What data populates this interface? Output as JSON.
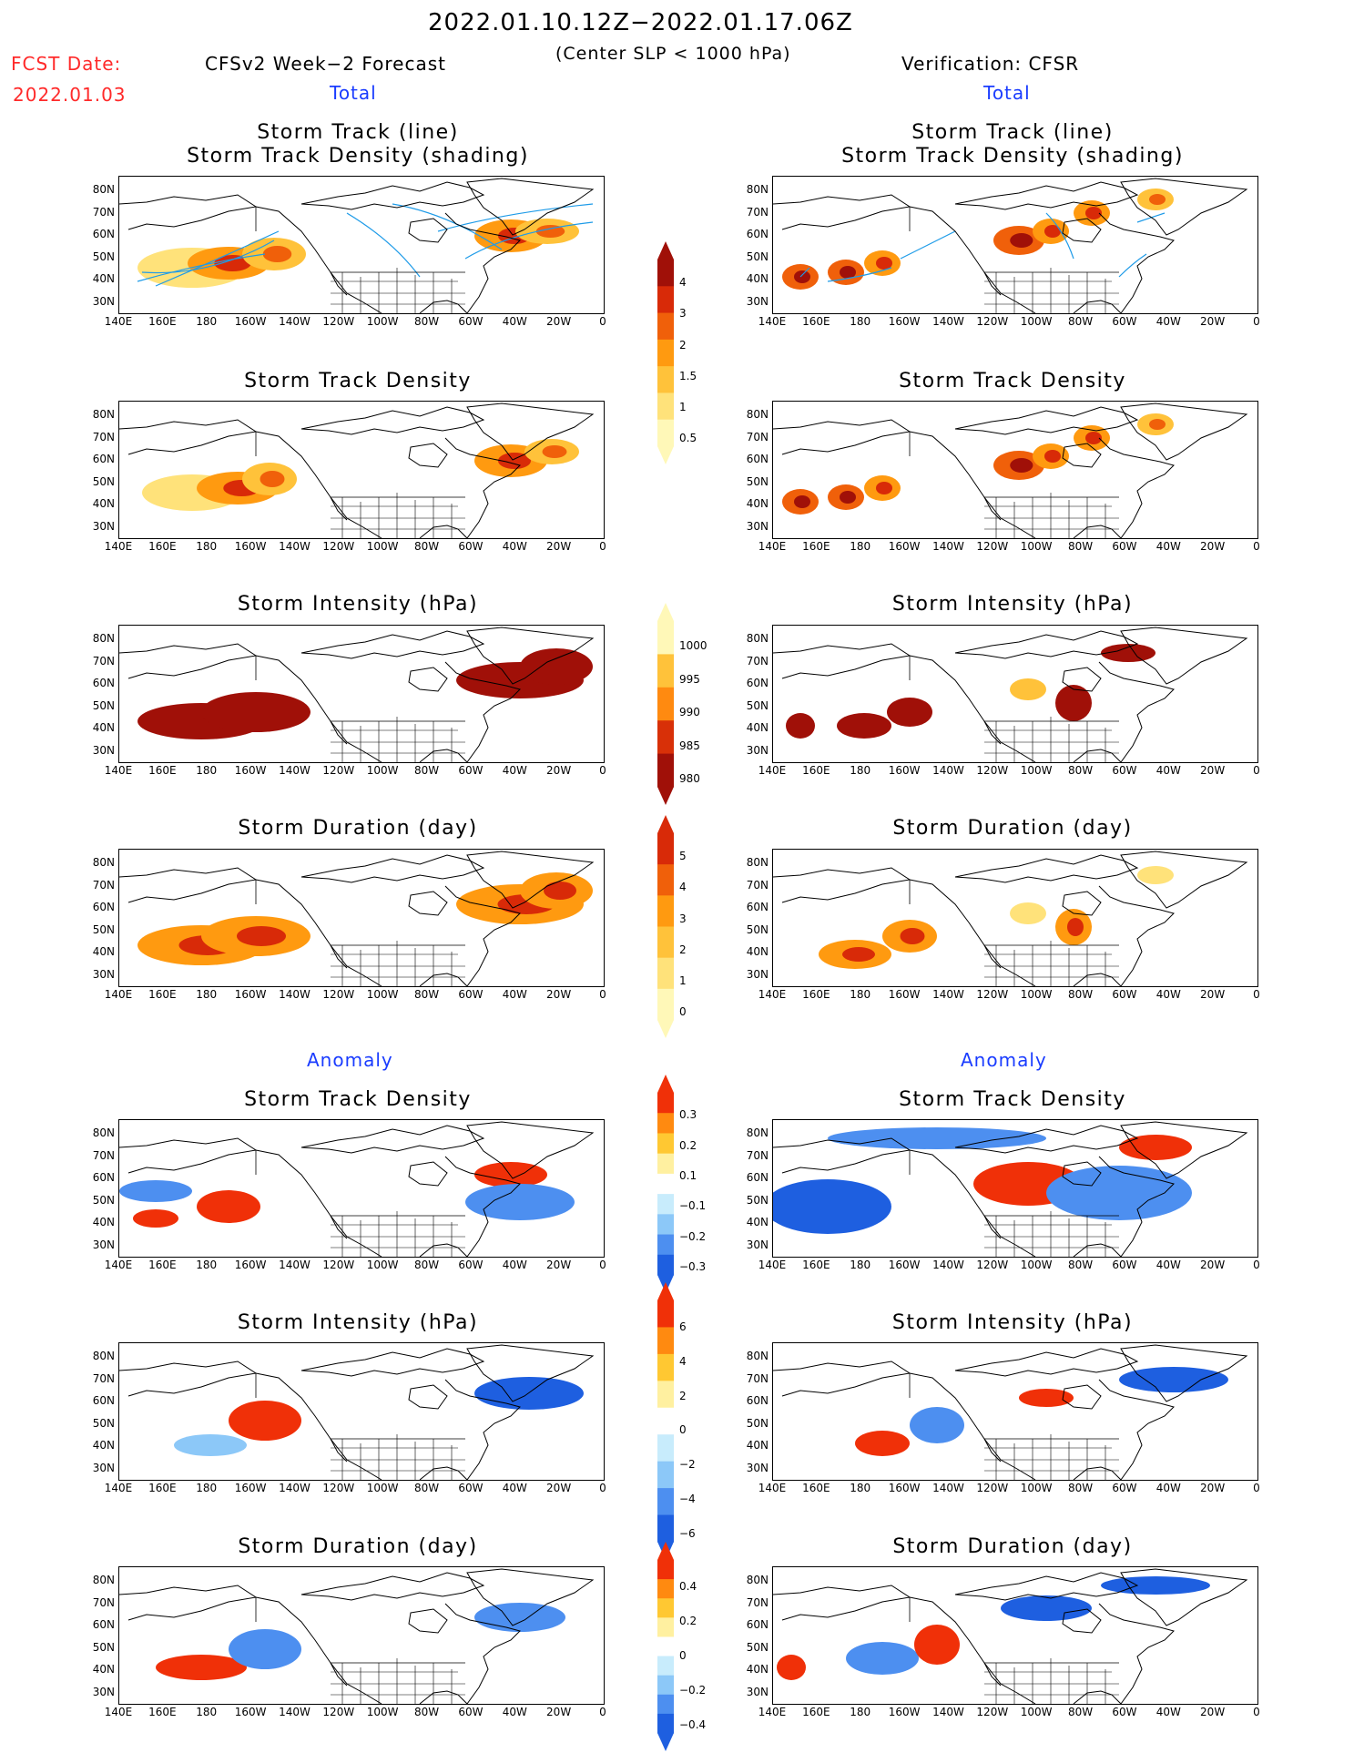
{
  "header": {
    "period": "2022.01.10.12Z−2022.01.17.06Z",
    "condition": "(Center SLP < 1000 hPa)",
    "fcst_label": "FCST Date:",
    "fcst_date": "2022.01.03",
    "left_model": "CFSv2 Week−2 Forecast",
    "right_model": "Verification: CFSR",
    "total_left": "Total",
    "total_right": "Total",
    "anomaly_left": "Anomaly",
    "anomaly_right": "Anomaly"
  },
  "panels": {
    "track_line_title1": "Storm Track (line)",
    "track_line_title2": "Storm Track Density (shading)",
    "density_title": "Storm Track Density",
    "intensity_title": "Storm Intensity (hPa)",
    "duration_title": "Storm Duration (day)"
  },
  "axes": {
    "lat_labels": [
      "80N",
      "70N",
      "60N",
      "50N",
      "40N",
      "30N"
    ],
    "lon_labels": [
      "140E",
      "160E",
      "180",
      "160W",
      "140W",
      "120W",
      "100W",
      "80W",
      "60W",
      "40W",
      "20W",
      "0"
    ]
  },
  "colorbars": {
    "density_total": [
      "4",
      "3",
      "2",
      "1.5",
      "1",
      "0.5"
    ],
    "intensity_total": [
      "1000",
      "995",
      "990",
      "985",
      "980"
    ],
    "duration_total": [
      "5",
      "4",
      "3",
      "2",
      "1",
      "0"
    ],
    "density_anom": [
      "0.3",
      "0.2",
      "0.1",
      "−0.1",
      "−0.2",
      "−0.3"
    ],
    "intensity_anom": [
      "6",
      "4",
      "2",
      "0",
      "−2",
      "−4",
      "−6"
    ],
    "duration_anom": [
      "0.4",
      "0.2",
      "0",
      "−0.2",
      "−0.4"
    ]
  },
  "colors": {
    "total_scale": [
      "#fff8b8",
      "#ffe27a",
      "#ffc23a",
      "#ff9a10",
      "#f0600a",
      "#d82a08",
      "#a01008"
    ],
    "intensity_scale": [
      "#fff8b8",
      "#ffc23a",
      "#ff8a10",
      "#d83008",
      "#a01008"
    ],
    "anom_scale": [
      "#1e5fe0",
      "#4d8ff0",
      "#8cc8f8",
      "#c8ecfc",
      "#ffffff",
      "#fff0a0",
      "#ffc832",
      "#ff8a10",
      "#f03008"
    ],
    "track_line": "#1e9be8",
    "title_red": "#ff2a2a",
    "title_blue": "#1a3cff"
  }
}
